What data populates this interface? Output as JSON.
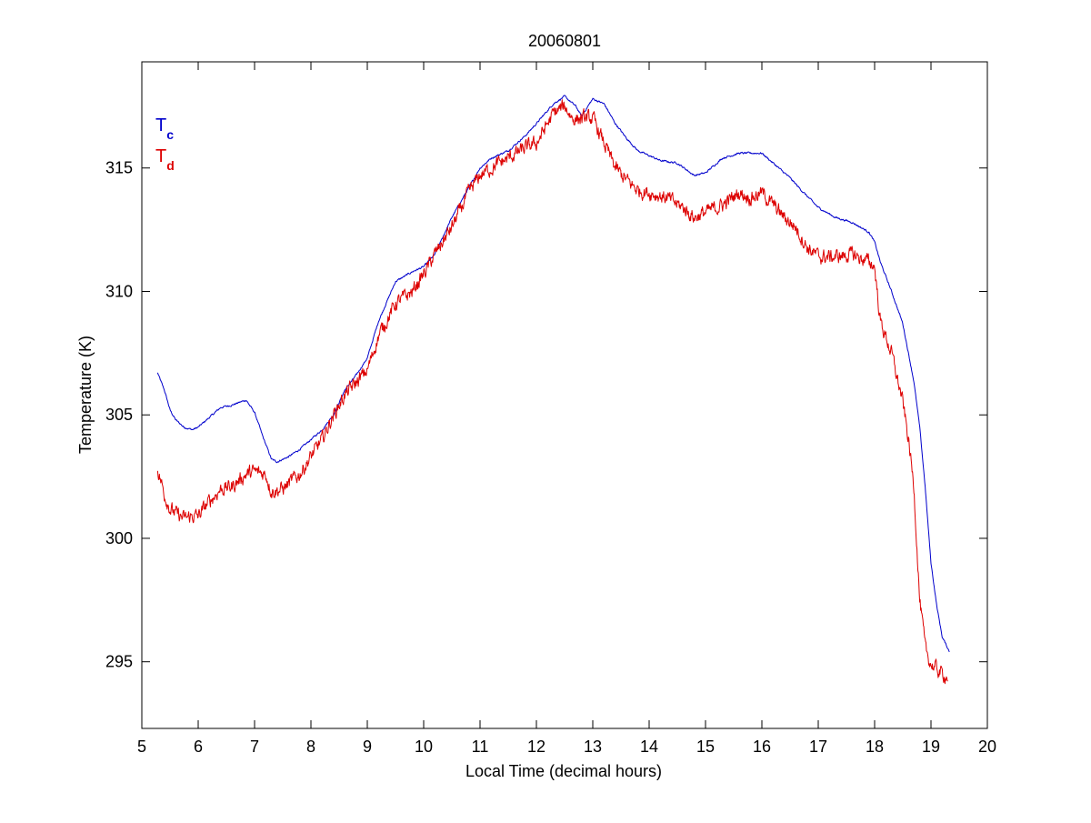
{
  "chart_data": {
    "type": "line",
    "title": "20060801",
    "xlabel": "Local Time (decimal hours)",
    "ylabel": "Temperature (K)",
    "xlim": [
      5,
      20
    ],
    "ylim": [
      292.3,
      319.3
    ],
    "xticks": [
      5,
      6,
      7,
      8,
      9,
      10,
      11,
      12,
      13,
      14,
      15,
      16,
      17,
      18,
      19,
      20
    ],
    "yticks": [
      295,
      300,
      305,
      310,
      315
    ],
    "grid": false,
    "legend": {
      "placement": "top-left",
      "entries": [
        {
          "main": "T",
          "sub": "c",
          "color": "#0000cc"
        },
        {
          "main": "T",
          "sub": "d",
          "color": "#dd0000"
        }
      ]
    },
    "series": [
      {
        "color": "#0000cc",
        "noise": 0.06,
        "x": [
          5.28,
          5.4,
          5.5,
          5.6,
          5.75,
          5.9,
          6.0,
          6.2,
          6.4,
          6.6,
          6.85,
          7.0,
          7.15,
          7.3,
          7.4,
          7.6,
          7.8,
          8.0,
          8.2,
          8.4,
          8.6,
          8.8,
          9.0,
          9.2,
          9.5,
          9.8,
          10.0,
          10.2,
          10.5,
          10.8,
          11.0,
          11.2,
          11.5,
          11.8,
          12.0,
          12.3,
          12.5,
          12.7,
          12.8,
          13.0,
          13.2,
          13.4,
          13.6,
          13.8,
          14.0,
          14.2,
          14.5,
          14.8,
          15.0,
          15.3,
          15.6,
          16.0,
          16.2,
          16.5,
          16.7,
          17.0,
          17.3,
          17.6,
          17.9,
          18.0,
          18.1,
          18.3,
          18.5,
          18.7,
          18.8,
          18.9,
          19.0,
          19.1,
          19.2,
          19.33
        ],
        "y": [
          306.7,
          306.0,
          305.2,
          304.8,
          304.5,
          304.4,
          304.5,
          304.9,
          305.3,
          305.4,
          305.6,
          305.1,
          304.1,
          303.2,
          303.1,
          303.3,
          303.6,
          304.0,
          304.4,
          305.0,
          306.0,
          306.6,
          307.3,
          308.8,
          310.4,
          310.8,
          311.0,
          311.5,
          313.0,
          314.2,
          315.0,
          315.4,
          315.7,
          316.3,
          316.8,
          317.6,
          317.9,
          317.5,
          317.1,
          317.8,
          317.6,
          316.8,
          316.2,
          315.7,
          315.5,
          315.3,
          315.2,
          314.7,
          314.8,
          315.4,
          315.6,
          315.6,
          315.2,
          314.6,
          314.1,
          313.4,
          313.0,
          312.8,
          312.4,
          312.0,
          311.2,
          310.0,
          308.7,
          306.3,
          304.5,
          302.0,
          299.0,
          297.3,
          296.0,
          295.4
        ]
      },
      {
        "color": "#dd0000",
        "noise": 0.45,
        "x": [
          5.28,
          5.4,
          5.5,
          5.6,
          5.75,
          5.9,
          6.0,
          6.2,
          6.4,
          6.6,
          6.85,
          7.0,
          7.2,
          7.3,
          7.5,
          7.8,
          8.0,
          8.2,
          8.4,
          8.6,
          8.8,
          9.0,
          9.2,
          9.5,
          9.8,
          10.0,
          10.2,
          10.5,
          10.8,
          11.0,
          11.2,
          11.5,
          11.8,
          12.0,
          12.3,
          12.5,
          12.65,
          12.8,
          13.0,
          13.2,
          13.4,
          13.6,
          13.8,
          14.0,
          14.3,
          14.6,
          14.8,
          15.0,
          15.3,
          15.6,
          15.8,
          16.0,
          16.2,
          16.4,
          16.6,
          16.8,
          17.0,
          17.3,
          17.6,
          17.9,
          18.0,
          18.1,
          18.3,
          18.5,
          18.6,
          18.7,
          18.8,
          18.9,
          19.0,
          19.2,
          19.3
        ],
        "y": [
          302.8,
          301.8,
          301.2,
          301.0,
          300.8,
          300.9,
          300.9,
          301.5,
          302.0,
          302.1,
          302.6,
          302.7,
          302.6,
          301.9,
          302.0,
          302.6,
          303.3,
          304.0,
          305.0,
          305.8,
          306.3,
          306.8,
          308.2,
          309.5,
          310.0,
          310.7,
          311.5,
          312.6,
          314.0,
          314.7,
          315.0,
          315.4,
          315.8,
          316.0,
          317.2,
          317.5,
          317.0,
          317.0,
          317.0,
          316.0,
          315.0,
          314.5,
          314.1,
          314.0,
          313.8,
          313.4,
          313.0,
          313.2,
          313.5,
          314.0,
          313.8,
          314.0,
          313.5,
          313.0,
          312.6,
          311.8,
          311.4,
          311.4,
          311.5,
          311.2,
          311.0,
          308.8,
          307.5,
          305.5,
          304.0,
          302.0,
          297.5,
          295.5,
          294.9,
          294.5,
          294.4
        ]
      }
    ]
  }
}
